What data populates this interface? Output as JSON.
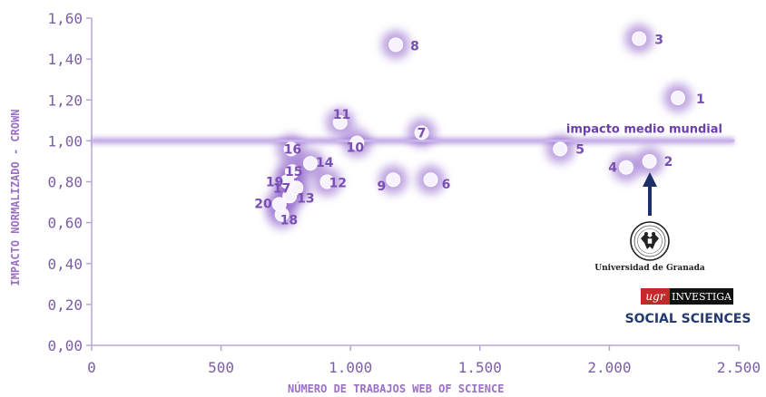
{
  "chart_data": {
    "type": "scatter",
    "xlabel": "NÚMERO DE TRABAJOS WEB OF SCIENCE",
    "ylabel": "IMPACTO NORMALIZADO - CROWN",
    "xlim": [
      0,
      2500
    ],
    "ylim": [
      0,
      1.6
    ],
    "x_ticks": [
      0,
      500,
      1000,
      1500,
      2000,
      2500
    ],
    "x_tick_labels": [
      "0",
      "500",
      "1.000",
      "1.500",
      "2.000",
      "2.500"
    ],
    "y_ticks": [
      0,
      0.2,
      0.4,
      0.6,
      0.8,
      1.0,
      1.2,
      1.4,
      1.6
    ],
    "y_tick_labels": [
      "0,00",
      "0,20",
      "0,40",
      "0,60",
      "0,80",
      "1,00",
      "1,20",
      "1,40",
      "1,60"
    ],
    "points": [
      {
        "label": "1",
        "x": 2265,
        "y": 1.21
      },
      {
        "label": "2",
        "x": 2155,
        "y": 0.9
      },
      {
        "label": "3",
        "x": 2115,
        "y": 1.5
      },
      {
        "label": "4",
        "x": 2065,
        "y": 0.87
      },
      {
        "label": "5",
        "x": 1810,
        "y": 0.96
      },
      {
        "label": "6",
        "x": 1310,
        "y": 0.81
      },
      {
        "label": "7",
        "x": 1275,
        "y": 1.04
      },
      {
        "label": "8",
        "x": 1175,
        "y": 1.47
      },
      {
        "label": "9",
        "x": 1165,
        "y": 0.81
      },
      {
        "label": "10",
        "x": 1025,
        "y": 0.99
      },
      {
        "label": "11",
        "x": 960,
        "y": 1.09
      },
      {
        "label": "12",
        "x": 910,
        "y": 0.8
      },
      {
        "label": "13",
        "x": 765,
        "y": 0.73
      },
      {
        "label": "14",
        "x": 845,
        "y": 0.89
      },
      {
        "label": "15",
        "x": 775,
        "y": 0.85
      },
      {
        "label": "16",
        "x": 770,
        "y": 0.96
      },
      {
        "label": "17",
        "x": 790,
        "y": 0.77
      },
      {
        "label": "18",
        "x": 735,
        "y": 0.64
      },
      {
        "label": "19",
        "x": 755,
        "y": 0.8
      },
      {
        "label": "20",
        "x": 725,
        "y": 0.69
      }
    ],
    "reference_line": {
      "y": 1.0,
      "label": "impacto medio mundial"
    },
    "highlight": {
      "point": "2",
      "caption": "Universidad de Granada"
    },
    "grid": false
  },
  "branding": {
    "ugr": "ugr",
    "investiga": "INVESTIGA",
    "social_sciences": "SOCIAL SCIENCES"
  },
  "colors": {
    "axis": "#b9a6d6",
    "tick_text": "#7b5ea7",
    "glow": "#8a5cc8",
    "point": "#f7f3fc",
    "label": "#7a4fb3",
    "reference": "#c9b3ec",
    "arrow": "#1c2f6b",
    "brand_red": "#c22a2a",
    "brand_navy": "#233a72"
  }
}
